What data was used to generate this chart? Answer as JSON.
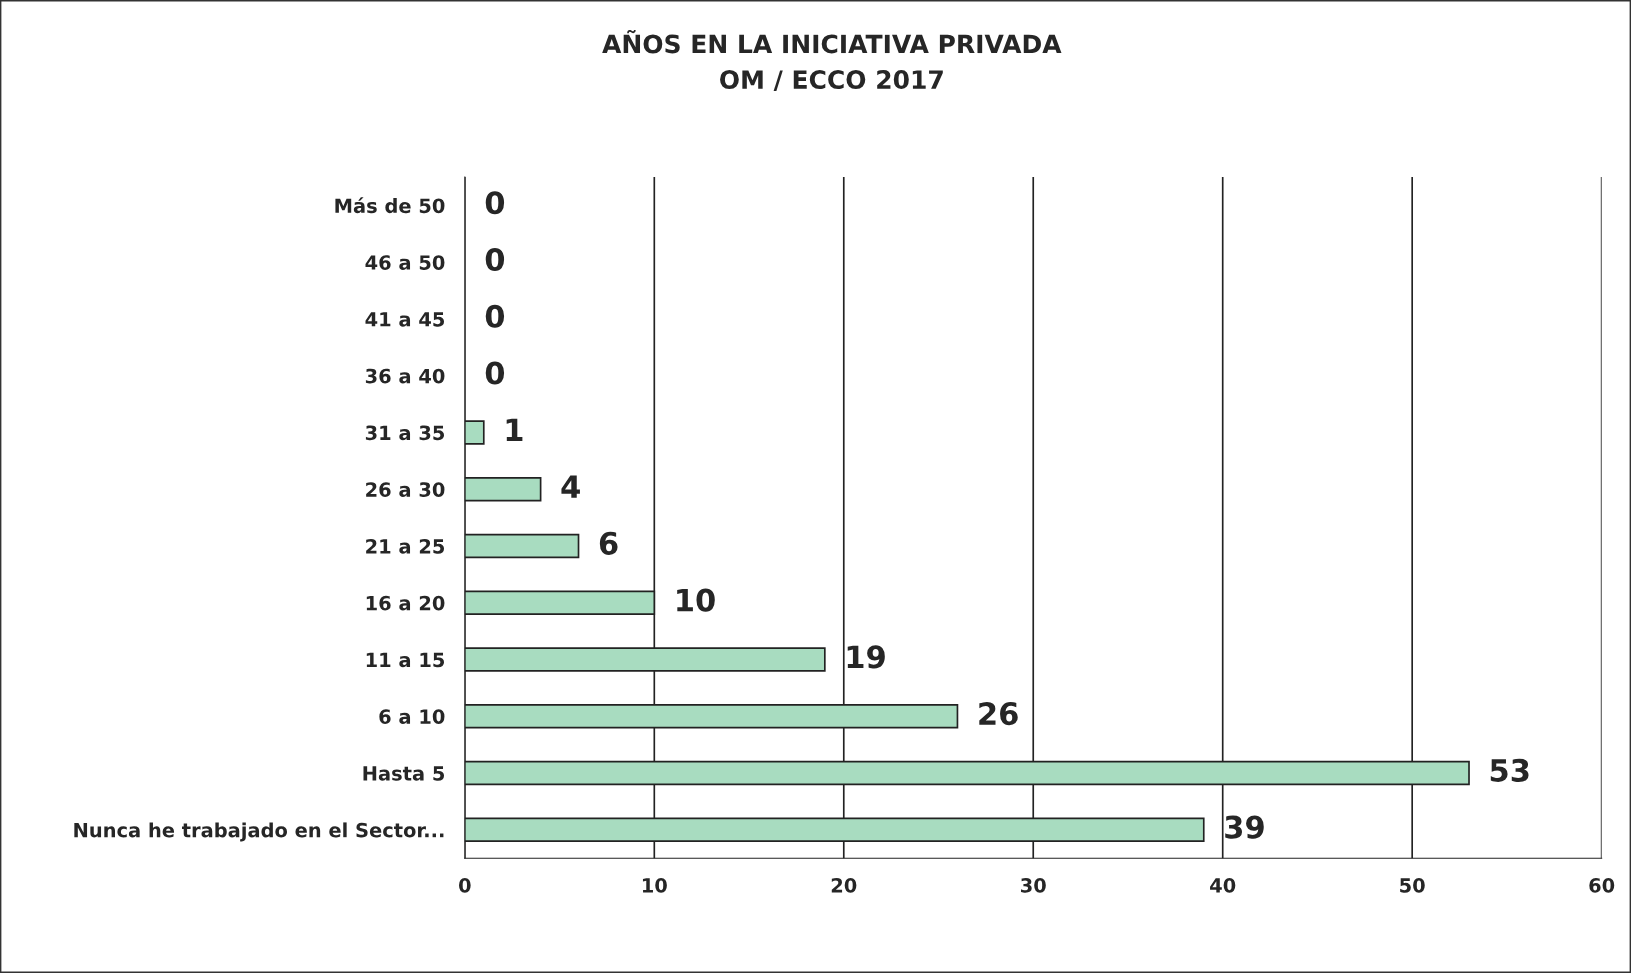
{
  "chart_data": {
    "type": "bar",
    "orientation": "horizontal",
    "title": "AÑOS EN LA INICIATIVA PRIVADA\nOM / ECCO 2017",
    "categories": [
      "Más de 50",
      "46 a 50",
      "41 a 45",
      "36 a 40",
      "31 a 35",
      "26 a 30",
      "21 a 25",
      "16 a 20",
      "11 a 15",
      "6 a 10",
      "Hasta 5",
      "Nunca he trabajado en el Sector..."
    ],
    "values": [
      0,
      0,
      0,
      0,
      1,
      4,
      6,
      10,
      19,
      26,
      53,
      39
    ],
    "color": "#a8dcc0",
    "xlim": [
      0,
      60
    ],
    "xticks": [
      0,
      10,
      20,
      30,
      40,
      50,
      60
    ],
    "grid": "x",
    "data_labels": true
  }
}
